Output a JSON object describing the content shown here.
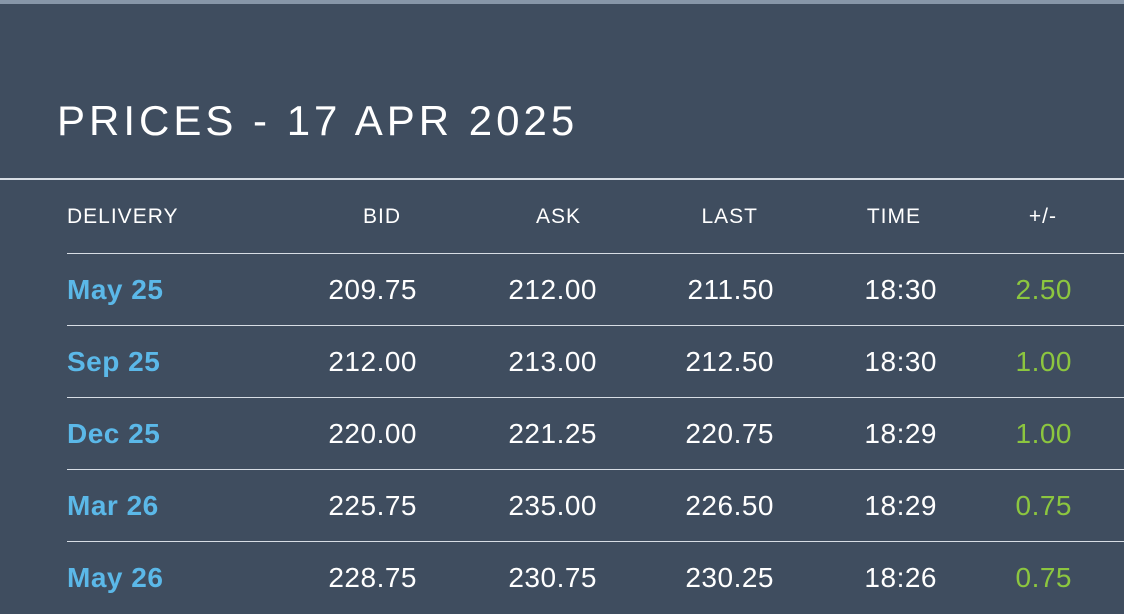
{
  "title": "PRICES - 17 APR 2025",
  "colors": {
    "background": "#3f4d5f",
    "delivery_link": "#5bb8e8",
    "positive_change": "#8cc63f",
    "text": "#ffffff"
  },
  "table": {
    "headers": {
      "delivery": "DELIVERY",
      "bid": "BID",
      "ask": "ASK",
      "last": "LAST",
      "time": "TIME",
      "change": "+/-"
    },
    "rows": [
      {
        "delivery": "May 25",
        "bid": "209.75",
        "ask": "212.00",
        "last": "211.50",
        "time": "18:30",
        "change": "2.50"
      },
      {
        "delivery": "Sep 25",
        "bid": "212.00",
        "ask": "213.00",
        "last": "212.50",
        "time": "18:30",
        "change": "1.00"
      },
      {
        "delivery": "Dec 25",
        "bid": "220.00",
        "ask": "221.25",
        "last": "220.75",
        "time": "18:29",
        "change": "1.00"
      },
      {
        "delivery": "Mar 26",
        "bid": "225.75",
        "ask": "235.00",
        "last": "226.50",
        "time": "18:29",
        "change": "0.75"
      },
      {
        "delivery": "May 26",
        "bid": "228.75",
        "ask": "230.75",
        "last": "230.25",
        "time": "18:26",
        "change": "0.75"
      }
    ]
  }
}
